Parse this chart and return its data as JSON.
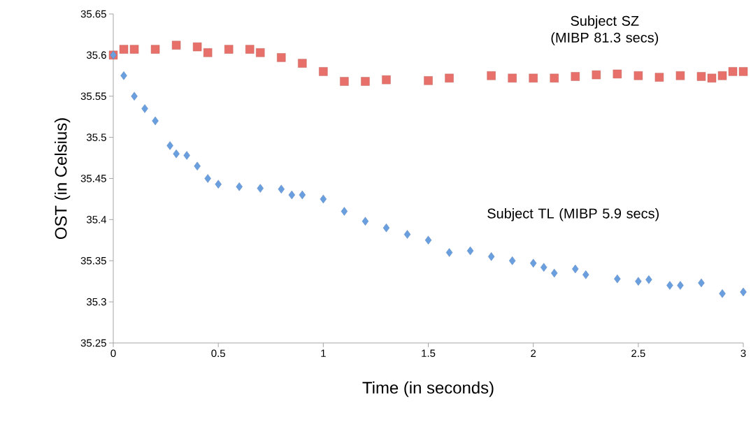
{
  "chart_data": {
    "type": "scatter",
    "xlabel": "Time (in seconds)",
    "ylabel": "OST (in Celsius)",
    "xlim": [
      0,
      3
    ],
    "ylim": [
      35.25,
      35.65
    ],
    "xticks": [
      0,
      0.5,
      1,
      1.5,
      2,
      2.5,
      3
    ],
    "yticks": [
      35.25,
      35.3,
      35.35,
      35.4,
      35.45,
      35.5,
      35.55,
      35.6,
      35.65
    ],
    "grid": false,
    "series": [
      {
        "name": "Subject SZ (MIBP 81.3 secs)",
        "color": "#e8706a",
        "marker": "square",
        "x": [
          0,
          0.05,
          0.1,
          0.2,
          0.3,
          0.4,
          0.45,
          0.55,
          0.65,
          0.7,
          0.8,
          0.9,
          1.0,
          1.1,
          1.2,
          1.3,
          1.5,
          1.6,
          1.8,
          1.9,
          2.0,
          2.1,
          2.2,
          2.3,
          2.4,
          2.5,
          2.6,
          2.7,
          2.8,
          2.85,
          2.9,
          2.95,
          3.0
        ],
        "values": [
          35.6,
          35.607,
          35.607,
          35.607,
          35.612,
          35.61,
          35.603,
          35.607,
          35.607,
          35.603,
          35.597,
          35.59,
          35.58,
          35.568,
          35.568,
          35.57,
          35.569,
          35.572,
          35.575,
          35.572,
          35.572,
          35.572,
          35.574,
          35.576,
          35.577,
          35.575,
          35.573,
          35.575,
          35.574,
          35.572,
          35.575,
          35.58,
          35.58
        ]
      },
      {
        "name": "Subject TL (MIBP 5.9 secs)",
        "color": "#6a9fdf",
        "marker": "diamond",
        "x": [
          0,
          0.05,
          0.1,
          0.15,
          0.2,
          0.27,
          0.3,
          0.35,
          0.4,
          0.45,
          0.5,
          0.6,
          0.7,
          0.8,
          0.85,
          0.9,
          1.0,
          1.1,
          1.2,
          1.3,
          1.4,
          1.5,
          1.6,
          1.7,
          1.8,
          1.9,
          2.0,
          2.05,
          2.1,
          2.2,
          2.25,
          2.4,
          2.5,
          2.55,
          2.65,
          2.7,
          2.8,
          2.9,
          3.0
        ],
        "values": [
          35.6,
          35.575,
          35.55,
          35.535,
          35.52,
          35.49,
          35.48,
          35.478,
          35.465,
          35.45,
          35.443,
          35.44,
          35.438,
          35.437,
          35.43,
          35.43,
          35.425,
          35.41,
          35.398,
          35.39,
          35.382,
          35.375,
          35.36,
          35.362,
          35.355,
          35.35,
          35.347,
          35.342,
          35.335,
          35.34,
          35.333,
          35.328,
          35.325,
          35.327,
          35.32,
          35.32,
          35.323,
          35.31,
          35.312
        ]
      }
    ]
  }
}
